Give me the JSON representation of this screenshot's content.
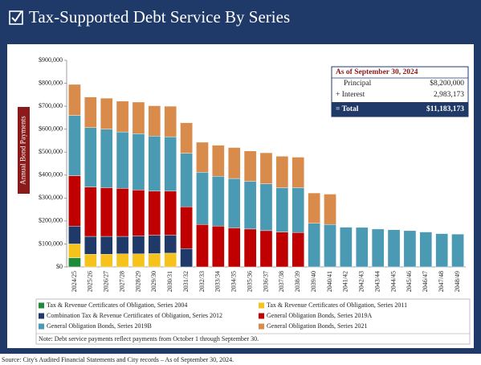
{
  "header": {
    "title": "Tax-Supported Debt Service By Series"
  },
  "chart_data": {
    "type": "bar",
    "stacked": true,
    "ylabel": "Annual Bond Payments",
    "categories": [
      "2024/25",
      "2025/26",
      "2026/27",
      "2027/28",
      "2028/29",
      "2029/30",
      "2030/31",
      "2031/32",
      "2032/33",
      "2033/34",
      "2034/35",
      "2035/36",
      "2036/37",
      "2037/38",
      "2038/39",
      "2039/40",
      "2040/41",
      "2041/42",
      "2042/43",
      "2043/44",
      "2044/45",
      "2045/46",
      "2046/47",
      "2047/48",
      "2048/49"
    ],
    "series": [
      {
        "name": "Tax & Revenue Certificates of Obligation, Series 2004",
        "color": "#1e8b3a",
        "values": [
          40000,
          0,
          0,
          0,
          0,
          0,
          0,
          0,
          0,
          0,
          0,
          0,
          0,
          0,
          0,
          0,
          0,
          0,
          0,
          0,
          0,
          0,
          0,
          0,
          0
        ]
      },
      {
        "name": "Tax & Revenue Certificates of Obligation, Series 2011",
        "color": "#f6c21c",
        "values": [
          60000,
          55000,
          55000,
          57000,
          57000,
          58000,
          60000,
          0,
          0,
          0,
          0,
          0,
          0,
          0,
          0,
          0,
          0,
          0,
          0,
          0,
          0,
          0,
          0,
          0,
          0
        ]
      },
      {
        "name": "Combination Tax & Revenue Certificates of Obligation, Series 2012",
        "color": "#1f3a68",
        "values": [
          78000,
          78000,
          78000,
          76000,
          78000,
          80000,
          78000,
          80000,
          0,
          0,
          0,
          0,
          0,
          0,
          0,
          0,
          0,
          0,
          0,
          0,
          0,
          0,
          0,
          0,
          0
        ]
      },
      {
        "name": "General Obligation Bonds, Series 2019A",
        "color": "#c00000",
        "values": [
          219000,
          215000,
          212000,
          209000,
          200000,
          192000,
          192000,
          182000,
          185000,
          178000,
          170000,
          165000,
          158000,
          152000,
          150000,
          0,
          0,
          0,
          0,
          0,
          0,
          0,
          0,
          0,
          0
        ]
      },
      {
        "name": "General Obligation Bonds, Series 2019B",
        "color": "#4b9ab4",
        "values": [
          263000,
          259000,
          255000,
          246000,
          245000,
          240000,
          237000,
          233000,
          227000,
          217000,
          215000,
          208000,
          204000,
          193000,
          195000,
          190000,
          185000,
          173000,
          172000,
          165000,
          162000,
          158000,
          152000,
          145000,
          143000
        ]
      },
      {
        "name": "General Obligation Bonds, Series 2021",
        "color": "#d98b4b",
        "values": [
          135000,
          133000,
          135000,
          134000,
          138000,
          132000,
          133000,
          133000,
          131000,
          135000,
          135000,
          132000,
          135000,
          137000,
          133000,
          132000,
          132000,
          0,
          0,
          0,
          0,
          0,
          0,
          0,
          0
        ]
      }
    ],
    "ylim": [
      0,
      900000
    ],
    "yticks": [
      {
        "value": 0,
        "label": "$0"
      },
      {
        "value": 100000,
        "label": "$100,000"
      },
      {
        "value": 200000,
        "label": "$200,000"
      },
      {
        "value": 300000,
        "label": "$300,000"
      },
      {
        "value": 400000,
        "label": "$400,000"
      },
      {
        "value": 500000,
        "label": "$500,000"
      },
      {
        "value": 600000,
        "label": "$600,000"
      },
      {
        "value": 700000,
        "label": "$700,000"
      },
      {
        "value": 800000,
        "label": "$800,000"
      },
      {
        "value": 900000,
        "label": "$900,000"
      }
    ],
    "grid": false
  },
  "summary": {
    "title": "As of September 30, 2024",
    "rows": [
      [
        "Principal",
        "$8,200,000"
      ],
      [
        "+ Interest",
        "2,983,173"
      ],
      [
        "= Total",
        "$11,183,173"
      ]
    ]
  },
  "note": "Note: Debt service payments reflect payments from October 1 through September 30.",
  "source": "Source: City's Audited Financial Statements and City records – As of September 30, 2024."
}
